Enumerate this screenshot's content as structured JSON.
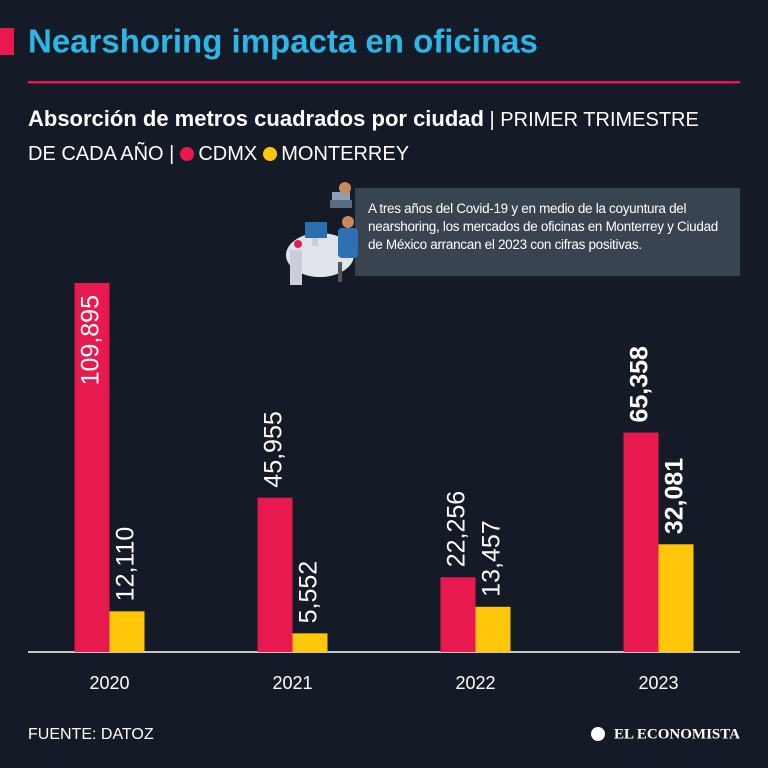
{
  "chart_data": {
    "type": "bar",
    "title": "Nearshoring impacta en oficinas",
    "subtitle": "Absorción de metros cuadrados por ciudad",
    "note": "| PRIMER TRIMESTRE DE CADA AÑO |",
    "annotation": "A tres años del Covid-19 y en medio de la coyuntura del nearshoring, los mercados de oficinas en Monterrey y Ciudad de México arrancan el 2023 con cifras positivas.",
    "categories": [
      "2020",
      "2021",
      "2022",
      "2023"
    ],
    "series": [
      {
        "name": "CDMX",
        "color": "#e8194f",
        "values": [
          109895,
          45955,
          22256,
          65358
        ],
        "value_labels": [
          "109,895",
          "45,955",
          "22,256",
          "65,358"
        ]
      },
      {
        "name": "MONTERREY",
        "color": "#ffc60a",
        "values": [
          12110,
          5552,
          13457,
          32081
        ],
        "value_labels": [
          "12,110",
          "5,552",
          "13,457",
          "32,081"
        ]
      }
    ],
    "source": "FUENTE: DATOZ",
    "brand": "EL ECONOMISTA"
  }
}
